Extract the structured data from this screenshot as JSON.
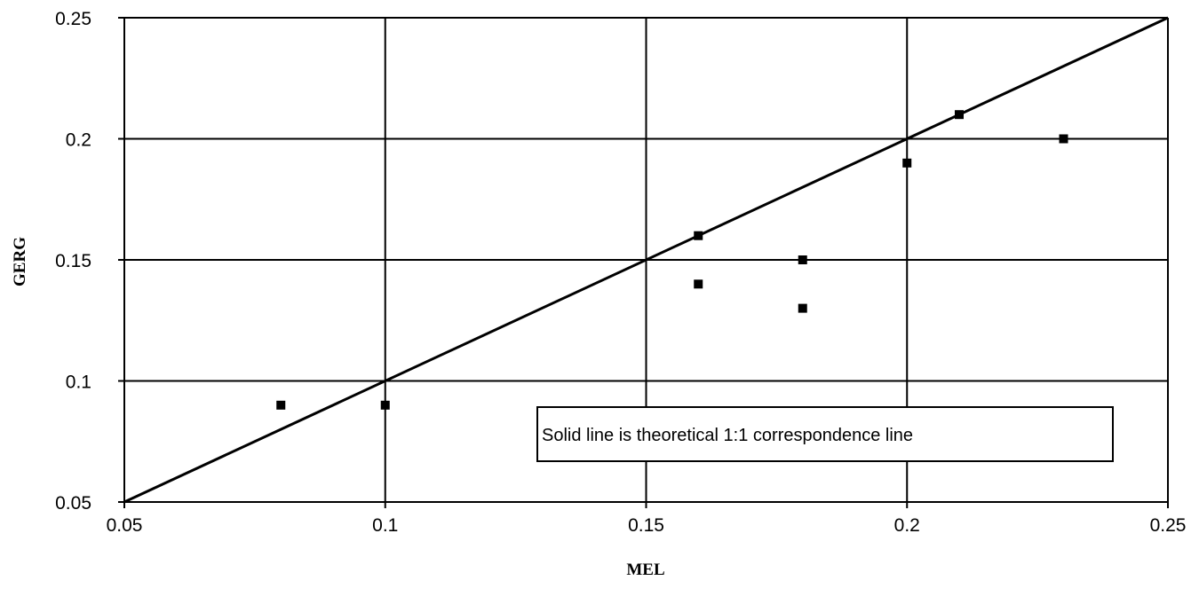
{
  "chart_data": {
    "type": "scatter",
    "title": "",
    "xlabel": "MEL",
    "ylabel": "GERG",
    "xlim": [
      0.05,
      0.25
    ],
    "ylim": [
      0.05,
      0.25
    ],
    "x_ticks": [
      "0.05",
      "0.1",
      "0.15",
      "0.2",
      "0.25"
    ],
    "y_ticks": [
      "0.05",
      "0.1",
      "0.15",
      "0.2",
      "0.25"
    ],
    "grid": true,
    "series": [
      {
        "marker": "square",
        "color": "#000000",
        "points": [
          {
            "x": 0.08,
            "y": 0.09
          },
          {
            "x": 0.1,
            "y": 0.09
          },
          {
            "x": 0.16,
            "y": 0.16
          },
          {
            "x": 0.16,
            "y": 0.14
          },
          {
            "x": 0.18,
            "y": 0.15
          },
          {
            "x": 0.18,
            "y": 0.13
          },
          {
            "x": 0.2,
            "y": 0.19
          },
          {
            "x": 0.21,
            "y": 0.21
          },
          {
            "x": 0.23,
            "y": 0.2
          }
        ]
      }
    ],
    "reference_line": {
      "from": {
        "x": 0.05,
        "y": 0.05
      },
      "to": {
        "x": 0.25,
        "y": 0.25
      }
    },
    "annotation": "Solid line is theoretical 1:1 correspondence line"
  }
}
